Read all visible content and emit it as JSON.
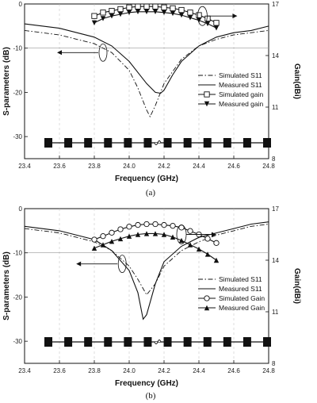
{
  "chart_data": [
    {
      "type": "line",
      "caption": "(a)",
      "xlabel": "Frequency (GHz)",
      "ylabel": "S-parameters (dB)",
      "y2label": "Gain(dBi)",
      "xlim": [
        23.4,
        24.8
      ],
      "ylim": [
        -35,
        0
      ],
      "y2lim": [
        8,
        17
      ],
      "xticks": [
        "23.4",
        "23.6",
        "23.8",
        "24.0",
        "24.2",
        "24.4",
        "24.6",
        "24.8"
      ],
      "yticks": [
        "0",
        "-10",
        "-20",
        "-30"
      ],
      "y2ticks": [
        "17",
        "14",
        "11",
        "8"
      ],
      "legend_position": "lower-right",
      "series": [
        {
          "name": "Simulated S11",
          "axis": "left",
          "style": "dashdot",
          "marker": "none",
          "x": [
            23.4,
            23.6,
            23.8,
            23.9,
            24.0,
            24.05,
            24.1,
            24.12,
            24.15,
            24.2,
            24.3,
            24.4,
            24.5,
            24.6,
            24.7,
            24.8
          ],
          "y": [
            -6,
            -7,
            -9,
            -11,
            -15,
            -19,
            -24,
            -25.5,
            -23,
            -18,
            -12.5,
            -9.5,
            -8,
            -7,
            -6.5,
            -6
          ]
        },
        {
          "name": "Measured S11",
          "axis": "left",
          "style": "solid",
          "marker": "none",
          "x": [
            23.4,
            23.6,
            23.8,
            23.9,
            24.0,
            24.1,
            24.15,
            24.18,
            24.2,
            24.25,
            24.3,
            24.4,
            24.5,
            24.6,
            24.7,
            24.8
          ],
          "y": [
            -4.5,
            -5.5,
            -7.5,
            -9.5,
            -13,
            -18,
            -20,
            -20.2,
            -19.5,
            -16,
            -13,
            -9.5,
            -7.5,
            -6.5,
            -6,
            -5
          ]
        },
        {
          "name": "Simulated gain",
          "axis": "right",
          "style": "solid",
          "marker": "open-square",
          "x": [
            23.8,
            23.85,
            23.9,
            23.95,
            24.0,
            24.05,
            24.1,
            24.15,
            24.2,
            24.25,
            24.3,
            24.35,
            24.4,
            24.45,
            24.5
          ],
          "y": [
            16.3,
            16.5,
            16.6,
            16.7,
            16.8,
            16.85,
            16.85,
            16.85,
            16.8,
            16.75,
            16.65,
            16.5,
            16.35,
            16.15,
            15.9
          ]
        },
        {
          "name": "Measured gain",
          "axis": "right",
          "style": "solid",
          "marker": "filled-triangle-down",
          "x": [
            23.8,
            23.85,
            23.9,
            23.95,
            24.0,
            24.05,
            24.1,
            24.15,
            24.2,
            24.25,
            24.3,
            24.35,
            24.4,
            24.45,
            24.5
          ],
          "y": [
            15.9,
            16.15,
            16.3,
            16.4,
            16.5,
            16.55,
            16.55,
            16.55,
            16.5,
            16.45,
            16.35,
            16.2,
            16.05,
            15.85,
            15.6
          ]
        }
      ]
    },
    {
      "type": "line",
      "caption": "(b)",
      "xlabel": "Frequency (GHz)",
      "ylabel": "S-parameters (dB)",
      "y2label": "Gain(dBi)",
      "xlim": [
        23.4,
        24.8
      ],
      "ylim": [
        -35,
        0
      ],
      "y2lim": [
        8,
        17
      ],
      "xticks": [
        "23.4",
        "23.6",
        "23.8",
        "24.0",
        "24.2",
        "24.4",
        "24.6",
        "24.8"
      ],
      "yticks": [
        "0",
        "-10",
        "-20",
        "-30"
      ],
      "y2ticks": [
        "17",
        "14",
        "11",
        "8"
      ],
      "legend_position": "lower-right",
      "series": [
        {
          "name": "Simulated S11",
          "axis": "left",
          "style": "dashdot",
          "marker": "none",
          "x": [
            23.4,
            23.6,
            23.8,
            23.9,
            24.0,
            24.05,
            24.1,
            24.15,
            24.2,
            24.3,
            24.4,
            24.5,
            24.6,
            24.7,
            24.8
          ],
          "y": [
            -4.5,
            -5.5,
            -7.5,
            -9.5,
            -13,
            -16,
            -19.5,
            -17,
            -13,
            -9.5,
            -7.5,
            -6,
            -5,
            -4,
            -3.5
          ]
        },
        {
          "name": "Measured S11",
          "axis": "left",
          "style": "solid",
          "marker": "none",
          "x": [
            23.4,
            23.6,
            23.8,
            23.9,
            24.0,
            24.05,
            24.08,
            24.1,
            24.15,
            24.2,
            24.3,
            24.4,
            24.5,
            24.6,
            24.7,
            24.8
          ],
          "y": [
            -4,
            -5,
            -7,
            -9.5,
            -14,
            -19,
            -25,
            -24,
            -17,
            -12,
            -8.5,
            -6.5,
            -5.5,
            -4.5,
            -3.5,
            -3
          ]
        },
        {
          "name": "Simulated Gain",
          "axis": "right",
          "style": "solid",
          "marker": "open-circle",
          "x": [
            23.8,
            23.85,
            23.9,
            23.95,
            24.0,
            24.05,
            24.1,
            24.15,
            24.2,
            24.25,
            24.3,
            24.35,
            24.4,
            24.45,
            24.5
          ],
          "y": [
            15.2,
            15.4,
            15.6,
            15.8,
            15.95,
            16.05,
            16.1,
            16.1,
            16.05,
            16.0,
            15.9,
            15.7,
            15.5,
            15.25,
            15.0
          ]
        },
        {
          "name": "Measured Gain",
          "axis": "right",
          "style": "solid",
          "marker": "filled-triangle",
          "x": [
            23.8,
            23.85,
            23.9,
            23.95,
            24.0,
            24.05,
            24.1,
            24.15,
            24.2,
            24.25,
            24.3,
            24.35,
            24.4,
            24.45,
            24.5
          ],
          "y": [
            14.7,
            14.9,
            15.1,
            15.25,
            15.4,
            15.5,
            15.55,
            15.55,
            15.5,
            15.35,
            15.15,
            14.9,
            14.65,
            14.35,
            14.0
          ]
        }
      ]
    }
  ]
}
